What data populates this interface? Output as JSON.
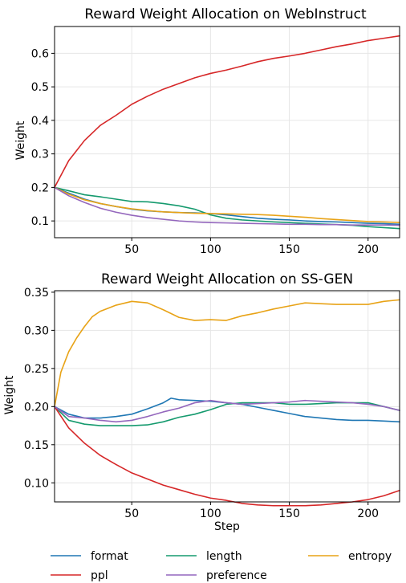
{
  "colors": {
    "format": "#1f77b4",
    "length": "#159a6e",
    "entropy": "#e8a317",
    "ppl": "#d62728",
    "preference": "#9467bd"
  },
  "legend": {
    "placement": "bottom",
    "items": [
      {
        "key": "format",
        "label": "format"
      },
      {
        "key": "length",
        "label": "length"
      },
      {
        "key": "entropy",
        "label": "entropy"
      },
      {
        "key": "ppl",
        "label": "ppl"
      },
      {
        "key": "preference",
        "label": "preference"
      }
    ]
  },
  "chart_data": [
    {
      "type": "line",
      "title": "Reward Weight Allocation on WebInstruct",
      "xlabel": "",
      "ylabel": "Weight",
      "xlim": [
        1,
        220
      ],
      "ylim": [
        0.05,
        0.68
      ],
      "xticks": [
        50,
        100,
        150,
        200
      ],
      "yticks": [
        0.1,
        0.2,
        0.3,
        0.4,
        0.5,
        0.6
      ],
      "ytick_labels": [
        "0.1",
        "0.2",
        "0.3",
        "0.4",
        "0.5",
        "0.6"
      ],
      "grid": true,
      "series": [
        {
          "name": "format",
          "x": [
            1,
            10,
            20,
            30,
            40,
            50,
            60,
            70,
            80,
            90,
            100,
            110,
            120,
            130,
            140,
            150,
            160,
            170,
            180,
            190,
            200,
            210,
            220
          ],
          "values": [
            0.2,
            0.183,
            0.165,
            0.152,
            0.143,
            0.135,
            0.13,
            0.127,
            0.125,
            0.124,
            0.122,
            0.118,
            0.113,
            0.108,
            0.105,
            0.103,
            0.1,
            0.098,
            0.097,
            0.095,
            0.093,
            0.092,
            0.09
          ]
        },
        {
          "name": "length",
          "x": [
            1,
            10,
            20,
            30,
            40,
            50,
            60,
            70,
            80,
            90,
            100,
            110,
            120,
            130,
            140,
            150,
            160,
            170,
            180,
            190,
            200,
            210,
            220
          ],
          "values": [
            0.2,
            0.19,
            0.178,
            0.172,
            0.165,
            0.158,
            0.157,
            0.152,
            0.145,
            0.135,
            0.118,
            0.108,
            0.103,
            0.1,
            0.097,
            0.095,
            0.093,
            0.091,
            0.089,
            0.087,
            0.083,
            0.08,
            0.077
          ]
        },
        {
          "name": "entropy",
          "x": [
            1,
            10,
            20,
            30,
            40,
            50,
            60,
            70,
            80,
            90,
            100,
            110,
            120,
            130,
            140,
            150,
            160,
            170,
            180,
            190,
            200,
            210,
            220
          ],
          "values": [
            0.2,
            0.18,
            0.163,
            0.152,
            0.143,
            0.136,
            0.131,
            0.127,
            0.125,
            0.123,
            0.122,
            0.121,
            0.12,
            0.119,
            0.117,
            0.114,
            0.111,
            0.107,
            0.104,
            0.101,
            0.098,
            0.097,
            0.095
          ]
        },
        {
          "name": "ppl",
          "x": [
            1,
            10,
            20,
            30,
            40,
            50,
            60,
            70,
            80,
            90,
            100,
            110,
            120,
            130,
            140,
            150,
            160,
            170,
            180,
            190,
            200,
            210,
            220
          ],
          "values": [
            0.2,
            0.28,
            0.34,
            0.385,
            0.415,
            0.448,
            0.472,
            0.493,
            0.51,
            0.527,
            0.54,
            0.55,
            0.562,
            0.575,
            0.585,
            0.592,
            0.6,
            0.61,
            0.62,
            0.628,
            0.638,
            0.645,
            0.652
          ]
        },
        {
          "name": "preference",
          "x": [
            1,
            10,
            20,
            30,
            40,
            50,
            60,
            70,
            80,
            90,
            100,
            110,
            120,
            130,
            140,
            150,
            160,
            170,
            180,
            190,
            200,
            210,
            220
          ],
          "values": [
            0.2,
            0.175,
            0.155,
            0.138,
            0.126,
            0.117,
            0.11,
            0.105,
            0.1,
            0.097,
            0.095,
            0.094,
            0.093,
            0.092,
            0.091,
            0.09,
            0.09,
            0.089,
            0.089,
            0.088,
            0.088,
            0.088,
            0.087
          ]
        }
      ]
    },
    {
      "type": "line",
      "title": "Reward Weight Allocation on SS-GEN",
      "xlabel": "Step",
      "ylabel": "Weight",
      "xlim": [
        1,
        220
      ],
      "ylim": [
        0.075,
        0.352
      ],
      "xticks": [
        50,
        100,
        150,
        200
      ],
      "yticks": [
        0.1,
        0.15,
        0.2,
        0.25,
        0.3,
        0.35
      ],
      "ytick_labels": [
        "0.10",
        "0.15",
        "0.20",
        "0.25",
        "0.30",
        "0.35"
      ],
      "grid": true,
      "series": [
        {
          "name": "format",
          "x": [
            1,
            10,
            20,
            30,
            40,
            50,
            60,
            70,
            75,
            80,
            90,
            100,
            110,
            120,
            130,
            140,
            150,
            160,
            170,
            180,
            190,
            200,
            210,
            220
          ],
          "values": [
            0.2,
            0.19,
            0.185,
            0.185,
            0.187,
            0.19,
            0.197,
            0.205,
            0.211,
            0.209,
            0.208,
            0.207,
            0.205,
            0.203,
            0.199,
            0.195,
            0.191,
            0.187,
            0.185,
            0.183,
            0.182,
            0.182,
            0.181,
            0.18
          ]
        },
        {
          "name": "length",
          "x": [
            1,
            10,
            20,
            30,
            40,
            50,
            60,
            70,
            80,
            90,
            100,
            110,
            120,
            130,
            140,
            150,
            160,
            170,
            180,
            190,
            200,
            210,
            220
          ],
          "values": [
            0.2,
            0.182,
            0.177,
            0.175,
            0.175,
            0.175,
            0.176,
            0.18,
            0.186,
            0.19,
            0.196,
            0.203,
            0.205,
            0.205,
            0.205,
            0.203,
            0.203,
            0.204,
            0.205,
            0.205,
            0.205,
            0.2,
            0.195
          ]
        },
        {
          "name": "entropy",
          "x": [
            1,
            5,
            10,
            15,
            20,
            25,
            30,
            40,
            50,
            60,
            70,
            80,
            90,
            100,
            110,
            120,
            130,
            140,
            150,
            160,
            170,
            180,
            190,
            200,
            210,
            220
          ],
          "values": [
            0.2,
            0.245,
            0.272,
            0.29,
            0.305,
            0.318,
            0.325,
            0.333,
            0.338,
            0.336,
            0.327,
            0.317,
            0.313,
            0.314,
            0.313,
            0.319,
            0.323,
            0.328,
            0.332,
            0.336,
            0.335,
            0.334,
            0.334,
            0.334,
            0.338,
            0.34
          ]
        },
        {
          "name": "ppl",
          "x": [
            1,
            10,
            20,
            30,
            40,
            50,
            60,
            70,
            80,
            90,
            100,
            110,
            120,
            130,
            140,
            150,
            160,
            170,
            180,
            190,
            200,
            210,
            220
          ],
          "values": [
            0.2,
            0.172,
            0.152,
            0.136,
            0.124,
            0.113,
            0.105,
            0.097,
            0.091,
            0.085,
            0.08,
            0.077,
            0.073,
            0.071,
            0.07,
            0.07,
            0.07,
            0.071,
            0.073,
            0.075,
            0.078,
            0.083,
            0.09
          ]
        },
        {
          "name": "preference",
          "x": [
            1,
            10,
            20,
            30,
            40,
            50,
            60,
            70,
            80,
            90,
            100,
            110,
            120,
            130,
            140,
            150,
            160,
            170,
            180,
            190,
            200,
            210,
            220
          ],
          "values": [
            0.2,
            0.187,
            0.185,
            0.182,
            0.18,
            0.182,
            0.187,
            0.193,
            0.198,
            0.205,
            0.208,
            0.205,
            0.203,
            0.204,
            0.205,
            0.206,
            0.208,
            0.207,
            0.206,
            0.205,
            0.203,
            0.2,
            0.195
          ]
        }
      ]
    }
  ]
}
